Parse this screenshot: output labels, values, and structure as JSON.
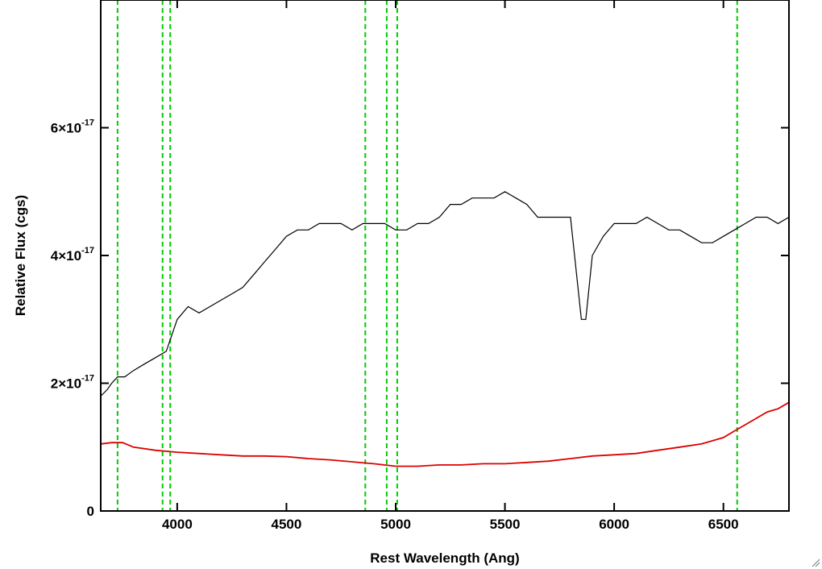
{
  "chart_data": {
    "type": "line",
    "xlabel": "Rest Wavelength (Ang)",
    "ylabel": "Relative Flux (cgs)",
    "xlim": [
      3650,
      6800
    ],
    "ylim": [
      0,
      8e-17
    ],
    "x_ticks": [
      4000,
      4500,
      5000,
      5500,
      6000,
      6500
    ],
    "x_tick_labels": [
      "4000",
      "4500",
      "5000",
      "5500",
      "6000",
      "6500"
    ],
    "y_ticks": [
      0,
      2e-17,
      4e-17,
      6e-17
    ],
    "y_tick_labels": [
      {
        "mantissa": "0",
        "exponent": ""
      },
      {
        "mantissa": "2×10",
        "exponent": "-17"
      },
      {
        "mantissa": "4×10",
        "exponent": "-17"
      },
      {
        "mantissa": "6×10",
        "exponent": "-17"
      }
    ],
    "vertical_lines": [
      3727,
      3933,
      3968,
      4861,
      4959,
      5007,
      6563
    ],
    "colors": {
      "spectrum": "#000000",
      "error": "#dd0000",
      "lines": "#00cc00"
    },
    "series": [
      {
        "color": "#000000",
        "x": [
          3650,
          3680,
          3700,
          3727,
          3760,
          3800,
          3850,
          3900,
          3950,
          4000,
          4050,
          4100,
          4150,
          4200,
          4250,
          4300,
          4350,
          4400,
          4450,
          4500,
          4550,
          4600,
          4650,
          4700,
          4750,
          4800,
          4850,
          4900,
          4950,
          5000,
          5050,
          5100,
          5150,
          5200,
          5250,
          5300,
          5350,
          5400,
          5450,
          5500,
          5550,
          5600,
          5650,
          5700,
          5750,
          5800,
          5850,
          5870,
          5900,
          5950,
          6000,
          6050,
          6100,
          6150,
          6200,
          6250,
          6300,
          6350,
          6400,
          6450,
          6500,
          6550,
          6600,
          6650,
          6700,
          6750,
          6800
        ],
        "y": [
          1.8e-17,
          1.9e-17,
          2e-17,
          2.1e-17,
          2.1e-17,
          2.2e-17,
          2.3e-17,
          2.4e-17,
          2.5e-17,
          3e-17,
          3.2e-17,
          3.1e-17,
          3.2e-17,
          3.3e-17,
          3.4e-17,
          3.5e-17,
          3.7e-17,
          3.9e-17,
          4.1e-17,
          4.3e-17,
          4.4e-17,
          4.4e-17,
          4.5e-17,
          4.5e-17,
          4.5e-17,
          4.4e-17,
          4.5e-17,
          4.5e-17,
          4.5e-17,
          4.4e-17,
          4.4e-17,
          4.5e-17,
          4.5e-17,
          4.6e-17,
          4.8e-17,
          4.8e-17,
          4.9e-17,
          4.9e-17,
          4.9e-17,
          5e-17,
          4.9e-17,
          4.8e-17,
          4.6e-17,
          4.6e-17,
          4.6e-17,
          4.6e-17,
          3e-17,
          3e-17,
          4e-17,
          4.3e-17,
          4.5e-17,
          4.5e-17,
          4.5e-17,
          4.6e-17,
          4.5e-17,
          4.4e-17,
          4.4e-17,
          4.3e-17,
          4.2e-17,
          4.2e-17,
          4.3e-17,
          4.4e-17,
          4.5e-17,
          4.6e-17,
          4.6e-17,
          4.5e-17,
          4.6e-17
        ]
      },
      {
        "color": "#dd0000",
        "x": [
          3650,
          3700,
          3750,
          3800,
          3900,
          4000,
          4100,
          4200,
          4300,
          4400,
          4500,
          4600,
          4700,
          4800,
          4900,
          5000,
          5100,
          5200,
          5300,
          5400,
          5500,
          5600,
          5700,
          5800,
          5900,
          6000,
          6100,
          6200,
          6300,
          6400,
          6500,
          6550,
          6600,
          6650,
          6700,
          6750,
          6800
        ],
        "y": [
          1.05e-17,
          1.07e-17,
          1.07e-17,
          1e-17,
          9.5e-18,
          9.2e-18,
          9e-18,
          8.8e-18,
          8.6e-18,
          8.6e-18,
          8.5e-18,
          8.2e-18,
          8e-18,
          7.7e-18,
          7.4e-18,
          7e-18,
          7e-18,
          7.2e-18,
          7.2e-18,
          7.4e-18,
          7.4e-18,
          7.6e-18,
          7.8e-18,
          8.2e-18,
          8.6e-18,
          8.8e-18,
          9e-18,
          9.5e-18,
          1e-17,
          1.05e-17,
          1.15e-17,
          1.25e-17,
          1.35e-17,
          1.45e-17,
          1.55e-17,
          1.6e-17,
          1.7e-17
        ]
      }
    ]
  }
}
